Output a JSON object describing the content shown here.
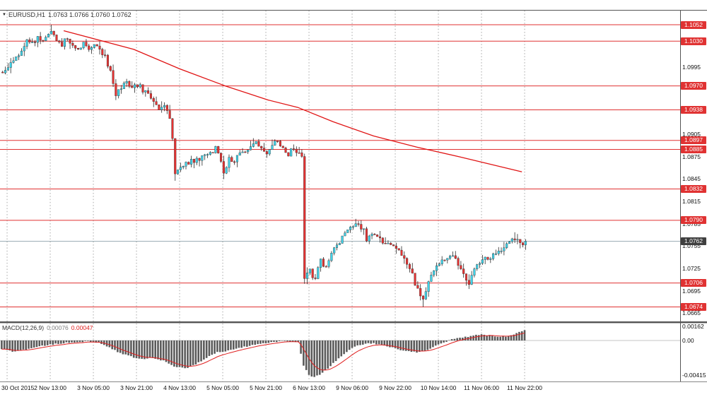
{
  "header": {
    "symbol": "EURUSD,H1",
    "quote": "1.0763 1.0766 1.0760 1.0762"
  },
  "chart_data": {
    "type": "candlestick",
    "symbol": "EURUSD",
    "timeframe": "H1",
    "quote": {
      "open": "1.0763",
      "high": "1.0766",
      "low": "1.0760",
      "close": "1.0762"
    },
    "current_price": "1.0762",
    "price_axis": {
      "plain_labels": [
        "1.0995",
        "1.0905",
        "1.0875",
        "1.0845",
        "1.0815",
        "1.0785",
        "1.0755",
        "1.0725",
        "1.0695",
        "1.0665"
      ],
      "min": 1.0655,
      "max": 1.1072
    },
    "levels": [
      "1.1052",
      "1.1030",
      "1.0970",
      "1.0938",
      "1.0897",
      "1.0885",
      "1.0832",
      "1.0790",
      "1.0706",
      "1.0674"
    ],
    "time_axis": {
      "labels": [
        "30 Oct 2015",
        "2 Nov 13:00",
        "3 Nov 05:00",
        "3 Nov 21:00",
        "4 Nov 13:00",
        "5 Nov 05:00",
        "5 Nov 21:00",
        "6 Nov 13:00",
        "9 Nov 06:00",
        "9 Nov 22:00",
        "10 Nov 14:00",
        "11 Nov 06:00",
        "11 Nov 22:00"
      ],
      "candles_per_label": 16
    },
    "candles": {
      "count": 195,
      "close_waypoints": [
        [
          0,
          1.0988
        ],
        [
          2,
          1.0998
        ],
        [
          4,
          1.1004
        ],
        [
          6,
          1.1012
        ],
        [
          9,
          1.103
        ],
        [
          11,
          1.1026
        ],
        [
          13,
          1.1034
        ],
        [
          15,
          1.103
        ],
        [
          17,
          1.104
        ],
        [
          18,
          1.1045
        ],
        [
          20,
          1.103
        ],
        [
          22,
          1.1026
        ],
        [
          24,
          1.1034
        ],
        [
          26,
          1.1022
        ],
        [
          28,
          1.1018
        ],
        [
          30,
          1.1026
        ],
        [
          32,
          1.102
        ],
        [
          34,
          1.1024
        ],
        [
          36,
          1.1022
        ],
        [
          38,
          1.1008
        ],
        [
          40,
          1.0988
        ],
        [
          42,
          1.0958
        ],
        [
          44,
          1.0968
        ],
        [
          46,
          1.0975
        ],
        [
          48,
          1.0966
        ],
        [
          50,
          1.0972
        ],
        [
          52,
          1.0965
        ],
        [
          54,
          1.096
        ],
        [
          56,
          1.0946
        ],
        [
          58,
          1.094
        ],
        [
          60,
          1.0946
        ],
        [
          62,
          1.0928
        ],
        [
          63,
          1.09
        ],
        [
          64,
          1.0852
        ],
        [
          66,
          1.0858
        ],
        [
          68,
          1.0866
        ],
        [
          71,
          1.087
        ],
        [
          74,
          1.0874
        ],
        [
          77,
          1.088
        ],
        [
          79,
          1.0886
        ],
        [
          81,
          1.0868
        ],
        [
          82,
          1.0856
        ],
        [
          84,
          1.0872
        ],
        [
          86,
          1.087
        ],
        [
          88,
          1.0878
        ],
        [
          90,
          1.0884
        ],
        [
          92,
          1.089
        ],
        [
          94,
          1.0896
        ],
        [
          96,
          1.0886
        ],
        [
          98,
          1.0882
        ],
        [
          100,
          1.0894
        ],
        [
          102,
          1.0896
        ],
        [
          104,
          1.089
        ],
        [
          106,
          1.0878
        ],
        [
          108,
          1.0888
        ],
        [
          110,
          1.0878
        ],
        [
          111,
          1.0876
        ],
        [
          112,
          1.0712
        ],
        [
          113,
          1.0722
        ],
        [
          114,
          1.0728
        ],
        [
          115,
          1.0716
        ],
        [
          116,
          1.0714
        ],
        [
          117,
          1.0726
        ],
        [
          118,
          1.0736
        ],
        [
          119,
          1.0726
        ],
        [
          120,
          1.073
        ],
        [
          122,
          1.0748
        ],
        [
          124,
          1.0758
        ],
        [
          126,
          1.0766
        ],
        [
          128,
          1.0774
        ],
        [
          130,
          1.0782
        ],
        [
          132,
          1.0786
        ],
        [
          134,
          1.0776
        ],
        [
          135,
          1.076
        ],
        [
          137,
          1.0772
        ],
        [
          139,
          1.0766
        ],
        [
          141,
          1.076
        ],
        [
          143,
          1.0762
        ],
        [
          145,
          1.0756
        ],
        [
          147,
          1.0748
        ],
        [
          149,
          1.0742
        ],
        [
          151,
          1.0726
        ],
        [
          153,
          1.0706
        ],
        [
          155,
          1.069
        ],
        [
          156,
          1.0682
        ],
        [
          157,
          1.0692
        ],
        [
          158,
          1.0706
        ],
        [
          160,
          1.0722
        ],
        [
          162,
          1.0734
        ],
        [
          164,
          1.074
        ],
        [
          166,
          1.0742
        ],
        [
          168,
          1.0738
        ],
        [
          170,
          1.0722
        ],
        [
          172,
          1.071
        ],
        [
          173,
          1.0706
        ],
        [
          175,
          1.0726
        ],
        [
          177,
          1.0732
        ],
        [
          179,
          1.0738
        ],
        [
          181,
          1.0742
        ],
        [
          183,
          1.0746
        ],
        [
          185,
          1.0752
        ],
        [
          187,
          1.076
        ],
        [
          189,
          1.0766
        ],
        [
          191,
          1.0764
        ],
        [
          193,
          1.0758
        ],
        [
          194,
          1.0762
        ]
      ],
      "notable_extremes": [
        [
          18,
          "high",
          1.1052
        ],
        [
          42,
          "low",
          1.0951
        ],
        [
          64,
          "low",
          1.0843
        ],
        [
          82,
          "low",
          1.0846
        ],
        [
          93,
          "high",
          1.09
        ],
        [
          112,
          "low",
          1.0705
        ],
        [
          131,
          "high",
          1.0792
        ],
        [
          156,
          "low",
          1.0674
        ],
        [
          173,
          "low",
          1.0698
        ],
        [
          190,
          "high",
          1.0774
        ]
      ]
    },
    "ma_line": {
      "points": [
        [
          23,
          1.1044
        ],
        [
          49,
          1.1019
        ],
        [
          66,
          1.0993
        ],
        [
          83,
          1.097
        ],
        [
          99,
          1.0951
        ],
        [
          110,
          1.0941
        ],
        [
          123,
          1.0922
        ],
        [
          138,
          1.0903
        ],
        [
          154,
          1.0888
        ],
        [
          170,
          1.0875
        ],
        [
          193,
          1.0855
        ]
      ]
    },
    "macd": {
      "label": "MACD(12,26,9)",
      "main_value": "0.00076",
      "signal_value": "0.00047",
      "axis_labels": [
        "0.00162",
        "0.00",
        "-0.00415"
      ],
      "histogram_waypoints": [
        [
          0,
          -0.001
        ],
        [
          4,
          -0.0013
        ],
        [
          8,
          -0.0011
        ],
        [
          14,
          -0.0007
        ],
        [
          20,
          -0.0004
        ],
        [
          26,
          -0.0002
        ],
        [
          32,
          -0.0001
        ],
        [
          36,
          -0.0003
        ],
        [
          40,
          -0.0008
        ],
        [
          44,
          -0.0015
        ],
        [
          48,
          -0.0019
        ],
        [
          52,
          -0.0022
        ],
        [
          56,
          -0.002
        ],
        [
          60,
          -0.0024
        ],
        [
          64,
          -0.0031
        ],
        [
          68,
          -0.0033
        ],
        [
          72,
          -0.0028
        ],
        [
          76,
          -0.002
        ],
        [
          80,
          -0.0014
        ],
        [
          84,
          -0.0012
        ],
        [
          88,
          -0.0009
        ],
        [
          92,
          -0.0006
        ],
        [
          96,
          -0.0004
        ],
        [
          100,
          -0.0002
        ],
        [
          104,
          -0.0001
        ],
        [
          108,
          -0.0001
        ],
        [
          110,
          -0.0002
        ],
        [
          112,
          -0.003
        ],
        [
          114,
          -0.0041
        ],
        [
          116,
          -0.0043
        ],
        [
          118,
          -0.004
        ],
        [
          121,
          -0.0033
        ],
        [
          124,
          -0.0024
        ],
        [
          127,
          -0.0016
        ],
        [
          130,
          -0.0009
        ],
        [
          133,
          -0.0005
        ],
        [
          136,
          -0.0003
        ],
        [
          139,
          -0.0004
        ],
        [
          142,
          -0.0006
        ],
        [
          145,
          -0.0008
        ],
        [
          148,
          -0.0011
        ],
        [
          151,
          -0.0013
        ],
        [
          154,
          -0.0014
        ],
        [
          157,
          -0.0012
        ],
        [
          160,
          -0.0008
        ],
        [
          163,
          -0.0004
        ],
        [
          166,
          0.0
        ],
        [
          169,
          0.0003
        ],
        [
          172,
          0.0004
        ],
        [
          175,
          0.0006
        ],
        [
          178,
          0.0007
        ],
        [
          181,
          0.0006
        ],
        [
          184,
          0.0005
        ],
        [
          187,
          0.0005
        ],
        [
          190,
          0.0007
        ],
        [
          194,
          0.0012
        ]
      ]
    },
    "colors": {
      "bull": "#3fd2e8",
      "bear": "#e63232",
      "wick": "#2a2a2a",
      "level": "#e03232",
      "ma": "#e01515",
      "signal": "#e02020",
      "histogram": "#5a5a5a",
      "badge": "#e03232",
      "current_badge": "#3f3f3f",
      "grid": "#808080",
      "bid_line": "#8fa3ad",
      "frame": "#555555"
    }
  }
}
